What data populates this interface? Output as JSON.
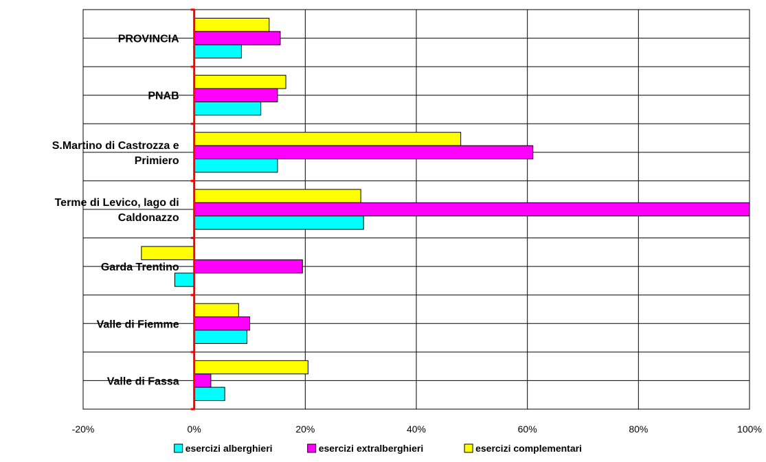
{
  "chart_data": {
    "type": "bar",
    "orientation": "horizontal",
    "categories": [
      [
        "PROVINCIA"
      ],
      [
        "PNAB"
      ],
      [
        "S.Martino di Castrozza e",
        "Primiero"
      ],
      [
        "Terme di Levico, lago di",
        "Caldonazzo"
      ],
      [
        "Garda Trentino"
      ],
      [
        "Valle di Fiemme"
      ],
      [
        "Valle di Fassa"
      ]
    ],
    "series": [
      {
        "name": "esercizi alberghieri",
        "color": "#00FFFF",
        "values": [
          8.5,
          12,
          15,
          30.5,
          -3.5,
          9.5,
          5.5
        ]
      },
      {
        "name": "esercizi extralberghieri",
        "color": "#FF00FF",
        "values": [
          15.5,
          15,
          61,
          100,
          19.5,
          10,
          3
        ]
      },
      {
        "name": "esercizi complementari",
        "color": "#FFFF00",
        "values": [
          13.5,
          16.5,
          48,
          30,
          -9.5,
          8,
          20.5
        ]
      }
    ],
    "xlim": [
      -20,
      100
    ],
    "xticks": [
      -20,
      0,
      20,
      40,
      60,
      80,
      100
    ],
    "xtick_labels": [
      "-20%",
      "0%",
      "20%",
      "40%",
      "60%",
      "80%",
      "100%"
    ],
    "grid": true,
    "zero_line_color": "#FF0000",
    "legend_position": "bottom",
    "title": "",
    "xlabel": "",
    "ylabel": ""
  }
}
